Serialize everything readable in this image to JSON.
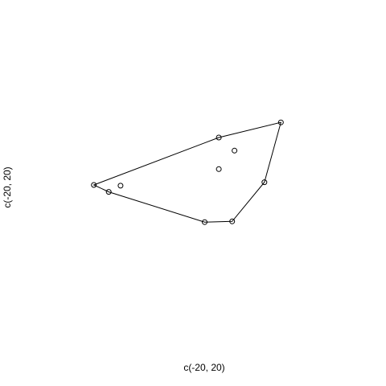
{
  "chart_data": {
    "type": "scatter",
    "title": "",
    "xlabel": "c(-20, 20)",
    "ylabel": "c(-20, 20)",
    "xlim": [
      -20,
      20
    ],
    "ylim": [
      -20,
      20
    ],
    "axes_visible": false,
    "grid": false,
    "marker": "open-circle",
    "points": [
      {
        "x": -14.1,
        "y": 0.0
      },
      {
        "x": -12.2,
        "y": -1.0
      },
      {
        "x": -10.7,
        "y": -0.1
      },
      {
        "x": 1.8,
        "y": 6.9
      },
      {
        "x": 1.8,
        "y": 2.3
      },
      {
        "x": 3.8,
        "y": 5.0
      },
      {
        "x": 9.7,
        "y": 9.1
      },
      {
        "x": 7.6,
        "y": 0.4
      },
      {
        "x": 3.5,
        "y": -5.3
      },
      {
        "x": 0.0,
        "y": -5.4
      }
    ],
    "hull": [
      {
        "x": -14.1,
        "y": 0.0
      },
      {
        "x": 1.8,
        "y": 6.9
      },
      {
        "x": 9.7,
        "y": 9.1
      },
      {
        "x": 7.6,
        "y": 0.4
      },
      {
        "x": 3.5,
        "y": -5.3
      },
      {
        "x": 0.0,
        "y": -5.4
      },
      {
        "x": -12.2,
        "y": -1.0
      }
    ]
  }
}
